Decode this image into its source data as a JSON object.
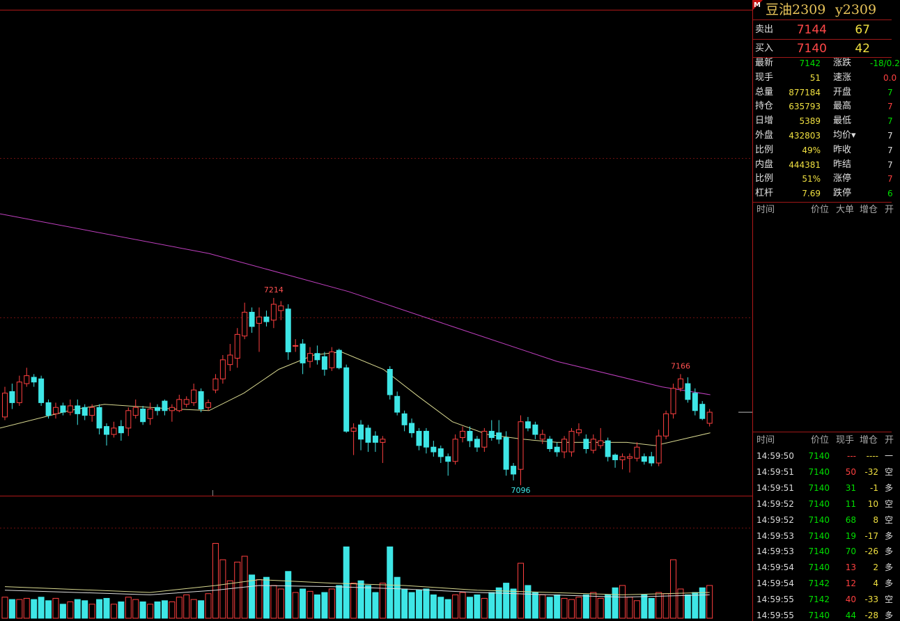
{
  "chart_data": {
    "type": "candlestick",
    "xlim": [
      -0.67,
      102.88
    ],
    "ylim": [
      7089.4,
      7395.1
    ],
    "vlim": [
      0,
      100
    ],
    "up_color": "#ff4040",
    "down_color": "#3ee6e6",
    "open": [
      7139,
      7155,
      7148,
      7160,
      7164,
      7163,
      7148,
      7141,
      7146,
      7142,
      7146,
      7145,
      7140,
      7145,
      7133,
      7128,
      7133,
      7132,
      7140,
      7144,
      7138,
      7145,
      7149,
      7143,
      7143,
      7147,
      7148,
      7155,
      7145,
      7156,
      7163,
      7172,
      7176,
      7190,
      7205,
      7198,
      7202,
      7200,
      7206,
      7207,
      7184,
      7185,
      7174,
      7179,
      7177,
      7170,
      7181,
      7170,
      7130,
      7134,
      7132,
      7127,
      7123,
      7169,
      7152,
      7141,
      7135,
      7130,
      7130,
      7120,
      7119,
      7114,
      7111,
      7126,
      7130,
      7125,
      7120,
      7130,
      7129,
      7126,
      7108,
      7106,
      7136,
      7134,
      7125,
      7125,
      7120,
      7117,
      7117,
      7129,
      7125,
      7118,
      7121,
      7124,
      7115,
      7112,
      7113,
      7113,
      7114,
      7114,
      7110,
      7127,
      7141,
      7157,
      7160,
      7154,
      7147,
      7135
    ],
    "high": [
      7158,
      7160,
      7165,
      7170,
      7166,
      7165,
      7150,
      7148,
      7148,
      7150,
      7150,
      7147,
      7147,
      7147,
      7135,
      7136,
      7137,
      7145,
      7150,
      7146,
      7148,
      7147,
      7150,
      7147,
      7153,
      7152,
      7160,
      7157,
      7150,
      7166,
      7178,
      7185,
      7195,
      7211,
      7208,
      7208,
      7206,
      7214,
      7212,
      7210,
      7188,
      7188,
      7183,
      7184,
      7180,
      7183,
      7182,
      7172,
      7135,
      7137,
      7134,
      7130,
      7127,
      7171,
      7155,
      7143,
      7138,
      7132,
      7132,
      7124,
      7121,
      7116,
      7128,
      7133,
      7133,
      7127,
      7132,
      7137,
      7137,
      7130,
      7110,
      7140,
      7139,
      7136,
      7131,
      7127,
      7123,
      7127,
      7132,
      7135,
      7128,
      7128,
      7132,
      7126,
      7116,
      7116,
      7116,
      7123,
      7116,
      7117,
      7131,
      7143,
      7160,
      7166,
      7164,
      7157,
      7149,
      7144
    ],
    "low": [
      7137,
      7144,
      7146,
      7158,
      7158,
      7146,
      7138,
      7138,
      7140,
      7140,
      7134,
      7137,
      7136,
      7128,
      7121,
      7126,
      7124,
      7127,
      7138,
      7134,
      7134,
      7140,
      7140,
      7136,
      7142,
      7145,
      7146,
      7142,
      7143,
      7154,
      7160,
      7168,
      7170,
      7188,
      7192,
      7180,
      7196,
      7195,
      7200,
      7175,
      7180,
      7166,
      7170,
      7172,
      7165,
      7168,
      7169,
      7129,
      7115,
      7118,
      7117,
      7117,
      7110,
      7150,
      7140,
      7130,
      7126,
      7118,
      7116,
      7114,
      7110,
      7102,
      7109,
      7123,
      7120,
      7117,
      7117,
      7124,
      7122,
      7102,
      7099,
      7096,
      7130,
      7125,
      7122,
      7117,
      7114,
      7113,
      7114,
      7127,
      7116,
      7116,
      7119,
      7111,
      7107,
      7106,
      7104,
      7111,
      7109,
      7108,
      7108,
      7125,
      7138,
      7155,
      7148,
      7140,
      7137,
      7133
    ],
    "close": [
      7154,
      7148,
      7161,
      7165,
      7161,
      7148,
      7140,
      7145,
      7142,
      7146,
      7141,
      7140,
      7145,
      7132,
      7128,
      7132,
      7129,
      7143,
      7145,
      7136,
      7144,
      7143,
      7143,
      7145,
      7150,
      7150,
      7156,
      7144,
      7148,
      7163,
      7175,
      7178,
      7191,
      7205,
      7196,
      7202,
      7199,
      7210,
      7209,
      7180,
      7184,
      7173,
      7179,
      7175,
      7169,
      7180,
      7170,
      7130,
      7132,
      7125,
      7123,
      7123,
      7125,
      7153,
      7142,
      7134,
      7129,
      7121,
      7120,
      7117,
      7114,
      7111,
      7125,
      7130,
      7124,
      7120,
      7130,
      7126,
      7125,
      7106,
      7103,
      7136,
      7132,
      7128,
      7128,
      7119,
      7117,
      7125,
      7130,
      7131,
      7119,
      7125,
      7124,
      7114,
      7112,
      7114,
      7114,
      7120,
      7111,
      7110,
      7127,
      7141,
      7157,
      7163,
      7150,
      7143,
      7138,
      7142
    ],
    "volume": [
      18,
      16,
      16,
      17,
      16,
      18,
      15,
      17,
      12,
      14,
      16,
      15,
      12,
      16,
      17,
      12,
      14,
      18,
      16,
      14,
      12,
      14,
      15,
      14,
      18,
      20,
      16,
      15,
      21,
      64,
      50,
      32,
      48,
      53,
      37,
      33,
      35,
      28,
      25,
      40,
      22,
      25,
      23,
      20,
      22,
      25,
      28,
      61,
      30,
      32,
      28,
      22,
      30,
      61,
      35,
      25,
      22,
      24,
      25,
      20,
      18,
      16,
      20,
      22,
      18,
      20,
      17,
      22,
      26,
      30,
      25,
      47,
      28,
      22,
      20,
      18,
      20,
      17,
      16,
      18,
      20,
      22,
      17,
      20,
      26,
      28,
      18,
      15,
      20,
      17,
      22,
      21,
      50,
      25,
      20,
      22,
      26,
      28
    ],
    "lines": [
      {
        "color": "#c040c0",
        "x": [
          -0.67,
          28.1,
          47.3,
          61.6,
          76,
          90.4,
          97.1
        ],
        "values": [
          7267,
          7242,
          7218,
          7196,
          7174,
          7158,
          7153
        ]
      },
      {
        "color": "#d8d890",
        "x": [
          -0.67,
          8.9,
          13.7,
          23.3,
          28.1,
          32.9,
          37.7,
          42.5,
          46.3,
          52.1,
          56.9,
          61.6,
          66.4,
          71.2,
          76,
          80.8,
          85.6,
          89.5,
          97.1
        ],
        "values": [
          7132,
          7143,
          7147,
          7144,
          7143,
          7154,
          7169,
          7178,
          7180,
          7169,
          7152,
          7136,
          7128,
          7125,
          7123,
          7123,
          7123,
          7121,
          7129
        ]
      }
    ],
    "volume_lines": [
      {
        "color": "#d8d890",
        "x": [
          0,
          20,
          29,
          35,
          45,
          55,
          65,
          75,
          85,
          97
        ],
        "values": [
          27,
          22,
          28,
          33,
          30,
          28,
          24,
          22,
          20,
          22
        ]
      },
      {
        "color": "#dddddd",
        "x": [
          0,
          20,
          29,
          35,
          45,
          55,
          65,
          75,
          85,
          97
        ],
        "values": [
          24,
          20,
          24,
          28,
          27,
          25,
          22,
          20,
          18,
          20
        ]
      }
    ],
    "annotations": [
      {
        "x": 37,
        "value": 7214,
        "color": "#ff5050"
      },
      {
        "x": 93,
        "value": 7166,
        "color": "#ff5050"
      },
      {
        "x": 71,
        "value": 7096,
        "color": "#3ee6e6"
      }
    ]
  },
  "panel": {
    "marker": "M",
    "title": "豆油2309",
    "code": "y2309",
    "quotes": [
      {
        "label": "卖出",
        "price": 7144,
        "volume": 67
      },
      {
        "label": "买入",
        "price": 7140,
        "volume": 42
      }
    ],
    "stats": [
      {
        "label": "最新",
        "value": 7142,
        "color": "#00e000",
        "label2": "涨跌",
        "value2": "-18/0.2",
        "color2": "#00e000"
      },
      {
        "label": "现手",
        "value": 51,
        "color": "#f0e040",
        "label2": "速涨",
        "value2": "0.0",
        "color2": "#ff4040"
      },
      {
        "label": "总量",
        "value": 877184,
        "color": "#f0e040",
        "label2": "开盘",
        "value2": "7",
        "color2": "#00e000"
      },
      {
        "label": "持仓",
        "value": 635793,
        "color": "#f0e040",
        "label2": "最高",
        "value2": "7",
        "color2": "#ff4040"
      },
      {
        "label": "日增",
        "value": 5389,
        "color": "#f0e040",
        "label2": "最低",
        "value2": "7",
        "color2": "#00e000"
      },
      {
        "label": "外盘",
        "value": 432803,
        "color": "#f0e040",
        "label2": "均价▾",
        "value2": "7",
        "color2": "#e0e0e0"
      },
      {
        "label": "比例",
        "value": "49%",
        "color": "#f0e040",
        "label2": "昨收",
        "value2": "7",
        "color2": "#e0e0e0"
      },
      {
        "label": "内盘",
        "value": 444381,
        "color": "#f0e040",
        "label2": "昨结",
        "value2": "7",
        "color2": "#e0e0e0"
      },
      {
        "label": "比例",
        "value": "51%",
        "color": "#f0e040",
        "label2": "涨停",
        "value2": "7",
        "color2": "#ff4040"
      },
      {
        "label": "杠杆",
        "value": 7.69,
        "color": "#f0e040",
        "label2": "跌停",
        "value2": "6",
        "color2": "#00e000"
      }
    ],
    "big_header": [
      "时间",
      "价位",
      "大单",
      "增仓",
      "开"
    ],
    "tick_header": [
      "时间",
      "价位",
      "现手",
      "增仓",
      "开"
    ],
    "ticks": [
      {
        "time": "14:59:50",
        "price": 7140,
        "hand": "---",
        "hand_color": "#ff4040",
        "oi": "----",
        "kind": "一"
      },
      {
        "time": "14:59:51",
        "price": 7140,
        "hand": 50,
        "hand_color": "#ff4040",
        "oi": -32,
        "kind": "空"
      },
      {
        "time": "14:59:51",
        "price": 7140,
        "hand": 31,
        "hand_color": "#00e000",
        "oi": -1,
        "kind": "多"
      },
      {
        "time": "14:59:52",
        "price": 7140,
        "hand": 11,
        "hand_color": "#00e000",
        "oi": 10,
        "kind": "空"
      },
      {
        "time": "14:59:52",
        "price": 7140,
        "hand": 68,
        "hand_color": "#00e000",
        "oi": 8,
        "kind": "空"
      },
      {
        "time": "14:59:53",
        "price": 7140,
        "hand": 19,
        "hand_color": "#00e000",
        "oi": -17,
        "kind": "多"
      },
      {
        "time": "14:59:53",
        "price": 7140,
        "hand": 70,
        "hand_color": "#00e000",
        "oi": -26,
        "kind": "多"
      },
      {
        "time": "14:59:54",
        "price": 7140,
        "hand": 13,
        "hand_color": "#ff4040",
        "oi": 2,
        "kind": "多"
      },
      {
        "time": "14:59:54",
        "price": 7142,
        "hand": 12,
        "hand_color": "#ff4040",
        "oi": 4,
        "kind": "多"
      },
      {
        "time": "14:59:55",
        "price": 7142,
        "hand": 40,
        "hand_color": "#ff4040",
        "oi": -33,
        "kind": "空"
      },
      {
        "time": "14:59:55",
        "price": 7140,
        "hand": 44,
        "hand_color": "#00e000",
        "oi": -28,
        "kind": "多"
      }
    ]
  }
}
